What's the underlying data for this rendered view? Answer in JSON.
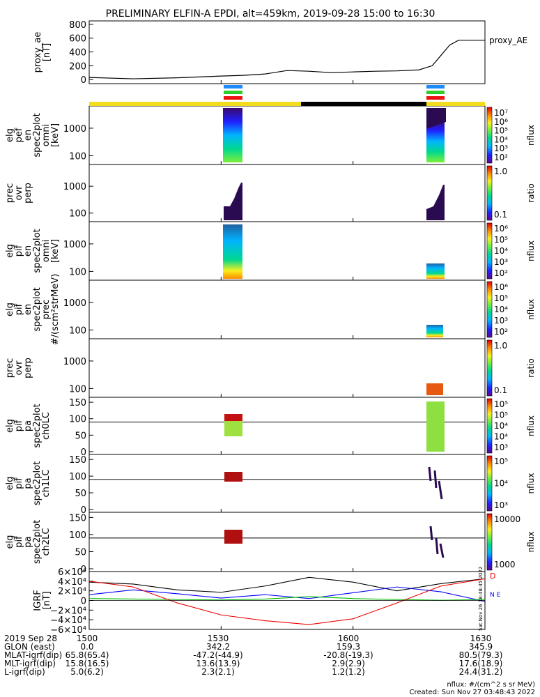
{
  "title": "PRELIMINARY ELFIN-A EPDI, alt=459km, 2019-09-28 15:00 to 16:30",
  "chart_data": [
    {
      "id": "proxy_ae",
      "type": "line",
      "ylabel": [
        "proxy_ae",
        "[nT]"
      ],
      "yticks": [
        "800",
        "600",
        "400",
        "200",
        "0"
      ],
      "ylim": [
        -60,
        850
      ],
      "legend": "proxy_AE",
      "x": [
        1500,
        1510,
        1520,
        1530,
        1535,
        1540,
        1545,
        1550,
        1555,
        1600,
        1605,
        1610,
        1615,
        1618,
        1620,
        1622,
        1624,
        1630
      ],
      "y": [
        30,
        10,
        25,
        50,
        60,
        80,
        130,
        120,
        100,
        110,
        120,
        125,
        140,
        200,
        350,
        500,
        570,
        570
      ],
      "series_color": "#000000"
    },
    {
      "id": "elf_pef_en",
      "type": "heatmap",
      "ylabel": [
        "elg",
        "pef",
        "en",
        "spec2plot",
        "omni",
        "[keV]"
      ],
      "yticks": [
        "1000",
        "100"
      ],
      "colorbar_ticks": [
        "10⁷",
        "10⁶",
        "10⁵",
        "10⁴",
        "10³",
        "10²"
      ],
      "colorbar_label": "nflux"
    },
    {
      "id": "prec_ovr_perp_e",
      "type": "heatmap",
      "ylabel": [
        "prec",
        "ovr",
        "perp"
      ],
      "yticks": [
        "1000",
        "100"
      ],
      "colorbar_ticks": [
        "1.0",
        "0.1"
      ],
      "colorbar_label": "ratio"
    },
    {
      "id": "elf_pif_en",
      "type": "heatmap",
      "ylabel": [
        "elg",
        "pif",
        "en",
        "spec2plot",
        "omni",
        "[keV]"
      ],
      "yticks": [
        "1000",
        "100"
      ],
      "colorbar_ticks": [
        "10⁶",
        "10⁵",
        "10⁴",
        "10³",
        "10²"
      ],
      "colorbar_label": "nflux"
    },
    {
      "id": "elf_pif_prec",
      "type": "heatmap",
      "ylabel": [
        "elg",
        "pif",
        "en",
        "spec2plot",
        "prec",
        "#/(scm²strMeV)"
      ],
      "yticks": [
        "1000",
        "100"
      ],
      "colorbar_ticks": [
        "10⁶",
        "10⁵",
        "10⁴",
        "10³",
        "10²"
      ],
      "colorbar_label": "nflux"
    },
    {
      "id": "prec_ovr_perp_i",
      "type": "heatmap",
      "ylabel": [
        "prec",
        "ovr",
        "perp"
      ],
      "yticks": [
        "1000",
        "100"
      ],
      "colorbar_ticks": [
        "1.0",
        "0.1"
      ],
      "colorbar_label": "ratio"
    },
    {
      "id": "pa_ch0",
      "type": "heatmap",
      "ylabel": [
        "elg",
        "pif",
        "pa",
        "spec2plot",
        "ch0LC"
      ],
      "yticks": [
        "150",
        "100",
        "50",
        "0"
      ],
      "colorbar_ticks": [
        "10⁵",
        "10⁵",
        "10⁴",
        "10⁴",
        "10³"
      ],
      "colorbar_label": "nflux"
    },
    {
      "id": "pa_ch1",
      "type": "heatmap",
      "ylabel": [
        "elg",
        "pif",
        "pa",
        "spec2plot",
        "ch1LC"
      ],
      "yticks": [
        "150",
        "100",
        "50",
        "0"
      ],
      "colorbar_ticks": [
        "10⁵",
        "10⁴",
        "10³"
      ],
      "colorbar_label": "nflux"
    },
    {
      "id": "pa_ch2",
      "type": "heatmap",
      "ylabel": [
        "elg",
        "pif",
        "pa",
        "spec2plot",
        "ch2LC"
      ],
      "yticks": [
        "150",
        "100",
        "50",
        "0"
      ],
      "colorbar_ticks": [
        "10000",
        "1000"
      ],
      "colorbar_label": "nflux"
    },
    {
      "id": "igrf",
      "type": "line",
      "ylabel": [
        "IGRF",
        "[nT]"
      ],
      "yticks": [
        "6×10⁴",
        "4×10⁴",
        "2×10⁴",
        "0",
        "−2×10⁴",
        "−4×10⁴",
        "−6×10⁴"
      ],
      "ylim": [
        -60000,
        60000
      ],
      "right_markers": [
        "D",
        "N E"
      ],
      "side_stamp": "Sat Nov 26 18:48:45 2022",
      "series": [
        {
          "color": "#000000",
          "x": [
            1500,
            1510,
            1520,
            1530,
            1540,
            1550,
            1600,
            1610,
            1620,
            1630
          ],
          "y": [
            38000,
            34000,
            22000,
            17000,
            30000,
            48000,
            38000,
            20000,
            35000,
            45000
          ]
        },
        {
          "color": "#0000ff",
          "x": [
            1500,
            1510,
            1520,
            1530,
            1540,
            1550,
            1600,
            1610,
            1620,
            1630
          ],
          "y": [
            12000,
            22000,
            14000,
            5000,
            12000,
            4000,
            16000,
            28000,
            18000,
            -2000
          ]
        },
        {
          "color": "#00bb00",
          "x": [
            1500,
            1510,
            1520,
            1530,
            1540,
            1550,
            1600,
            1610,
            1620,
            1630
          ],
          "y": [
            4000,
            3000,
            2000,
            1000,
            3000,
            8000,
            4000,
            2000,
            500,
            2000
          ]
        },
        {
          "color": "#ee0000",
          "x": [
            1500,
            1510,
            1520,
            1530,
            1540,
            1550,
            1600,
            1610,
            1620,
            1630
          ],
          "y": [
            40000,
            28000,
            -5000,
            -30000,
            -42000,
            -50000,
            -38000,
            -5000,
            30000,
            45000
          ]
        }
      ]
    }
  ],
  "xaxis": {
    "ticks": [
      "1500",
      "1530",
      "1600",
      "1630"
    ],
    "rows": [
      {
        "label": "2019 Sep 28",
        "values": [
          "1500",
          "1530",
          "1600",
          "1630"
        ]
      },
      {
        "label": "GLON (east)",
        "values": [
          "0.0",
          "342.2",
          "159.3",
          "345.9"
        ]
      },
      {
        "label": "MLAT-igrf(dip)",
        "values": [
          "65.8(65.4)",
          "-47.2(-44.9)",
          "-20.8(-19.3)",
          "80.5(79.3)"
        ]
      },
      {
        "label": "MLT-igrf(dip)",
        "values": [
          "15.8(16.5)",
          "13.6(13.9)",
          "2.9(2.9)",
          "17.6(18.9)"
        ]
      },
      {
        "label": "L-igrf(dip)",
        "values": "[\"5.0(6.2)\",\"2.3(2.1)\",\"1.2(1.2)\",\"24.4(31.2)\"]"
      }
    ]
  },
  "footer": {
    "units": "nflux: #/(cm^2 s sr MeV)",
    "created": "Created: Sun Nov 27 03:48:43 2022"
  },
  "colors": {
    "orbit_yellow": "#f2dc1e",
    "orbit_black": "#000000",
    "indicator_blue": "#1e8bff",
    "indicator_green": "#2ccf2c",
    "indicator_red": "#ee1111"
  }
}
